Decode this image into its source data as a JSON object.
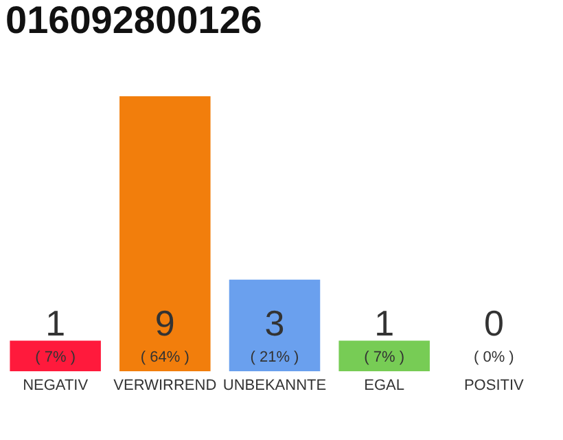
{
  "chart_data": {
    "type": "bar",
    "title": "016092800126",
    "categories": [
      "NEGATIV",
      "VERWIRREND",
      "UNBEKANNTE",
      "EGAL",
      "POSITIV"
    ],
    "values": [
      1,
      9,
      3,
      1,
      0
    ],
    "colors": [
      "#ff1a3c",
      "#f27e0c",
      "#6aa0ee",
      "#77cc55",
      "#cccccc"
    ],
    "data_labels": true,
    "annotations": [
      {
        "text": "( 7% )",
        "x": "NEGATIV",
        "y": 0
      },
      {
        "text": "( 64% )",
        "x": "VERWIRREND",
        "y": 0
      },
      {
        "text": "( 21% )",
        "x": "UNBEKANNTE",
        "y": 0
      },
      {
        "text": "( 7% )",
        "x": "EGAL",
        "y": 0
      },
      {
        "text": "( 0% )",
        "x": "POSITIV",
        "y": 0
      }
    ],
    "orientation": "vertical"
  }
}
